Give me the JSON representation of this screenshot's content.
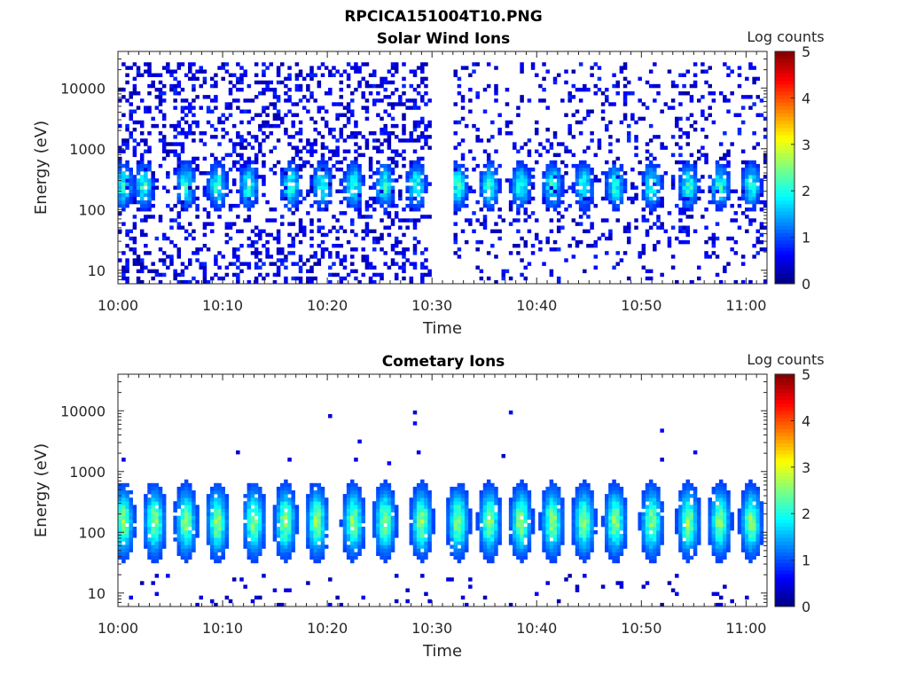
{
  "figure": {
    "title": "RPCICA151004T10.PNG"
  },
  "colormap": {
    "name": "jet",
    "stops": [
      "#00007f",
      "#0000ff",
      "#007fff",
      "#00ffff",
      "#7fff7f",
      "#ffff00",
      "#ff7f00",
      "#ff0000",
      "#7f0000"
    ]
  },
  "chart_data": [
    {
      "type": "heatmap",
      "title": "Solar Wind Ions",
      "xlabel": "Time",
      "ylabel": "Energy (eV)",
      "y_scale": "log",
      "ylim": [
        6,
        40000
      ],
      "xlim": [
        "10:00",
        "11:02"
      ],
      "x_ticks": [
        "10:00",
        "10:10",
        "10:20",
        "10:30",
        "10:40",
        "10:50",
        "11:00"
      ],
      "y_ticks": [
        "10",
        "100",
        "1000",
        "10000"
      ],
      "colorbar": {
        "label": "Log counts",
        "range": [
          0,
          5
        ],
        "ticks": [
          "0",
          "1",
          "2",
          "3",
          "4",
          "5"
        ]
      },
      "data_gap": [
        "10:30",
        "10:32"
      ],
      "bursts_minutes": [
        0.5,
        2.5,
        6.5,
        9.5,
        12.5,
        16.5,
        19.5,
        22.5,
        25.5,
        28.5,
        32.5,
        35.5,
        38.5,
        41.5,
        44.5,
        47.5,
        51,
        54.5,
        57.5,
        60.5
      ],
      "peak_energy_eV": 250,
      "max_log_counts": 2.3
    },
    {
      "type": "heatmap",
      "title": "Cometary Ions",
      "xlabel": "Time",
      "ylabel": "Energy (eV)",
      "y_scale": "log",
      "ylim": [
        6,
        40000
      ],
      "xlim": [
        "10:00",
        "11:02"
      ],
      "x_ticks": [
        "10:00",
        "10:10",
        "10:20",
        "10:30",
        "10:40",
        "10:50",
        "11:00"
      ],
      "y_ticks": [
        "10",
        "100",
        "1000",
        "10000"
      ],
      "colorbar": {
        "label": "Log counts",
        "range": [
          0,
          5
        ],
        "ticks": [
          "0",
          "1",
          "2",
          "3",
          "4",
          "5"
        ]
      },
      "bursts_minutes": [
        0.5,
        3.5,
        6.5,
        9.5,
        13,
        16,
        19,
        22.5,
        25.5,
        29,
        32.5,
        35.5,
        38.5,
        41.5,
        44.5,
        47.5,
        51,
        54.5,
        57.5,
        60.5
      ],
      "peak_energy_eV": 150,
      "max_log_counts": 2.7
    }
  ]
}
